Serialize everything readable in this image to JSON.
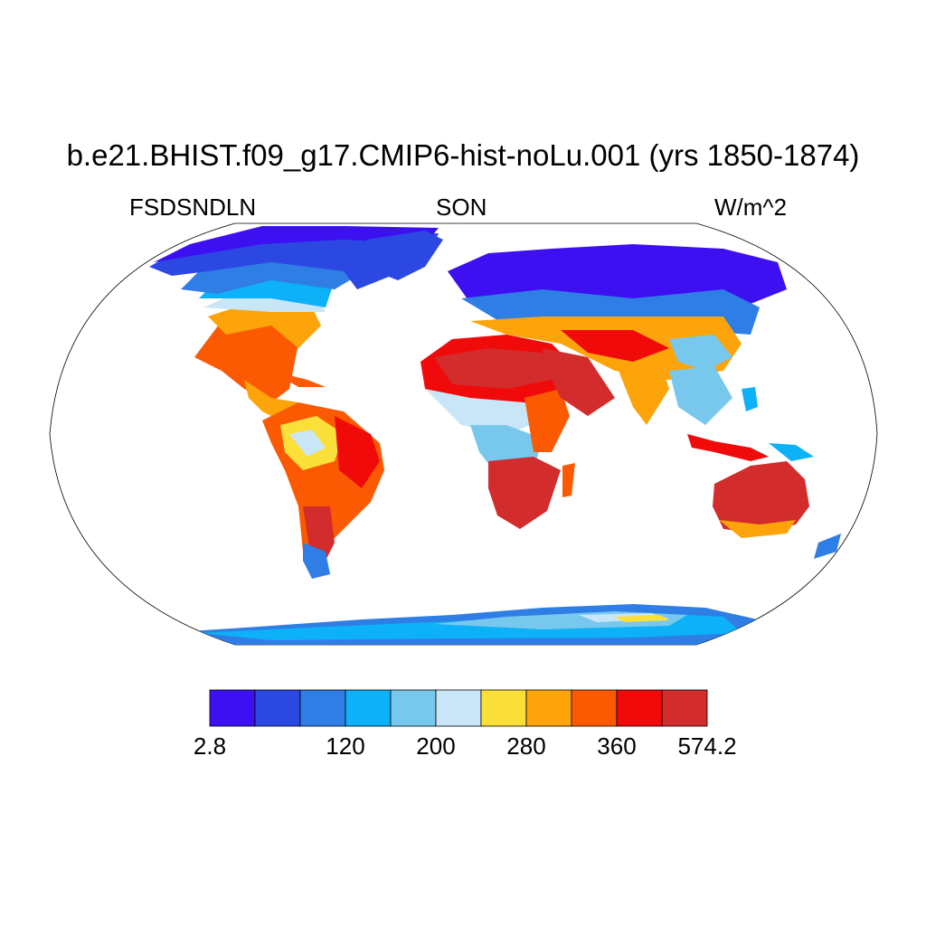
{
  "title": "b.e21.BHIST.f09_g17.CMIP6-hist-noLu.001 (yrs 1850-1874)",
  "left_string": "FSDSNDLN",
  "center_string": "SON",
  "right_string": "W/m^2",
  "projection": "Robinson",
  "colormap": [
    "#3c10f0",
    "#2c48e3",
    "#2f7ee6",
    "#0db1f7",
    "#78c8ee",
    "#c8e6f7",
    "#fbe03a",
    "#fca40a",
    "#fc5a02",
    "#f10a0a",
    "#d22c2c"
  ],
  "colorbar": {
    "boxes": 11,
    "labels": [
      {
        "text": "2.8",
        "box_edge": 0
      },
      {
        "text": "120",
        "box_edge": 3
      },
      {
        "text": "200",
        "box_edge": 5
      },
      {
        "text": "280",
        "box_edge": 7
      },
      {
        "text": "360",
        "box_edge": 9
      },
      {
        "text": "574.2",
        "box_edge": 11
      }
    ]
  }
}
